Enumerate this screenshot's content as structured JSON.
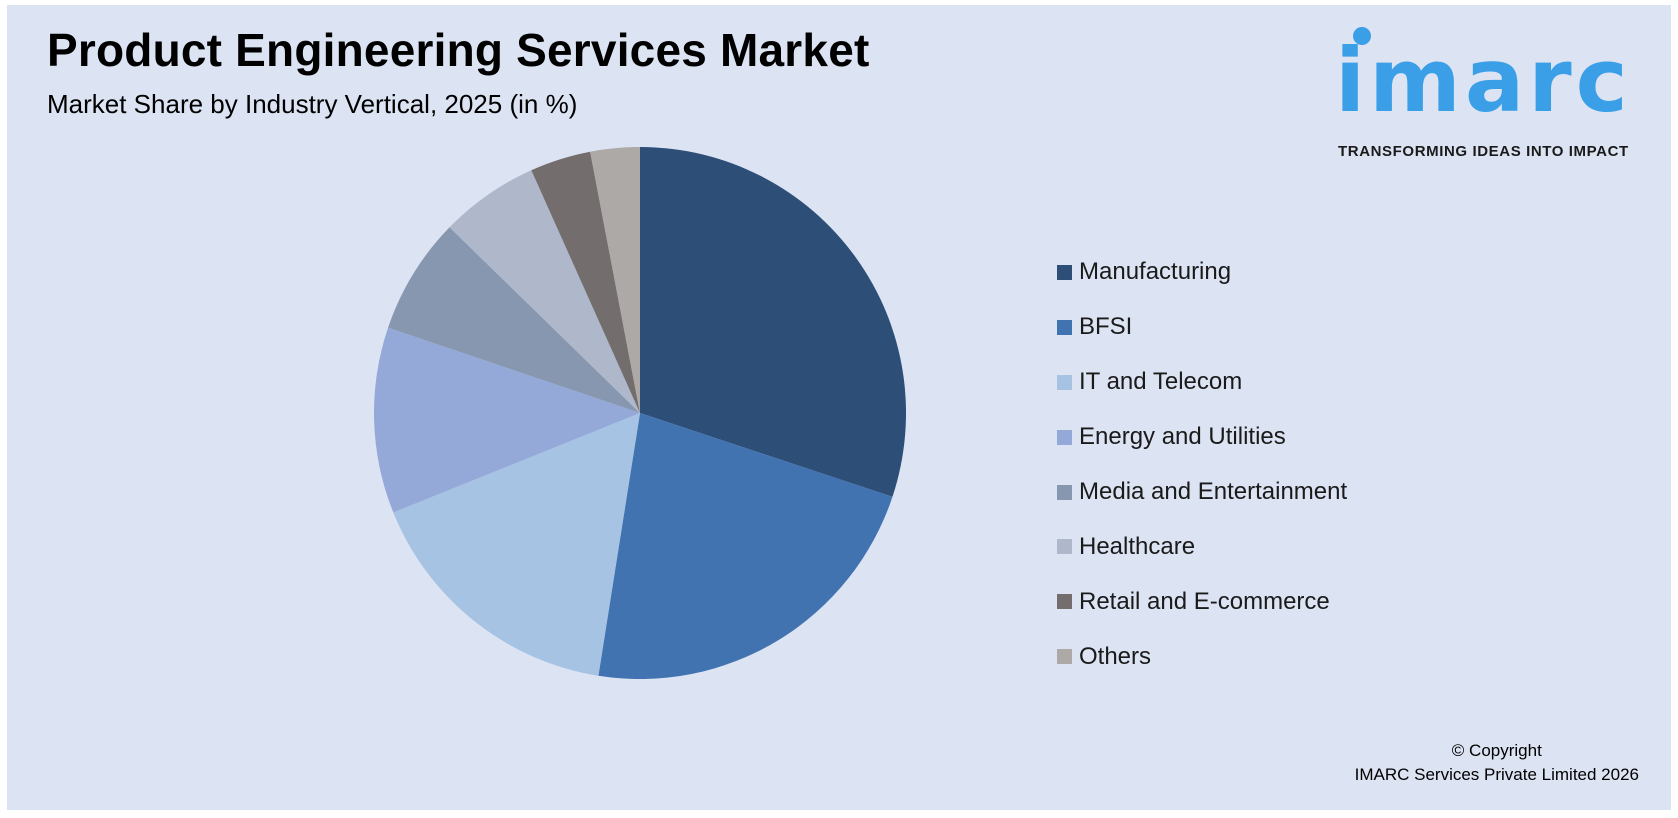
{
  "title": "Product Engineering Services Market",
  "subtitle": "Market Share by Industry Vertical, 2025 (in %)",
  "logo": {
    "wordmark": "imarc",
    "tagline": "TRANSFORMING IDEAS INTO IMPACT",
    "color": "#3b9fe8"
  },
  "copyright": {
    "line1": "© Copyright",
    "line2": "IMARC Services Private Limited 2026"
  },
  "chart_data": {
    "type": "pie",
    "title": "Product Engineering Services Market",
    "subtitle": "Market Share by Industry Vertical, 2025 (in %)",
    "legend_position": "right",
    "start_angle": "12 o'clock",
    "direction": "clockwise",
    "categories": [
      "Manufacturing",
      "BFSI",
      "IT and Telecom",
      "Energy and Utilities",
      "Media and Entertainment",
      "Healthcare",
      "Retail and E-commerce",
      "Others"
    ],
    "values": [
      30.1,
      22.4,
      16.4,
      11.3,
      7.1,
      6.0,
      3.7,
      3.0
    ],
    "colors": [
      "#2c4e77",
      "#4173b0",
      "#a6c3e3",
      "#95a9d8",
      "#8797af",
      "#aeb8ca",
      "#736e6d",
      "#aca9a6"
    ]
  }
}
